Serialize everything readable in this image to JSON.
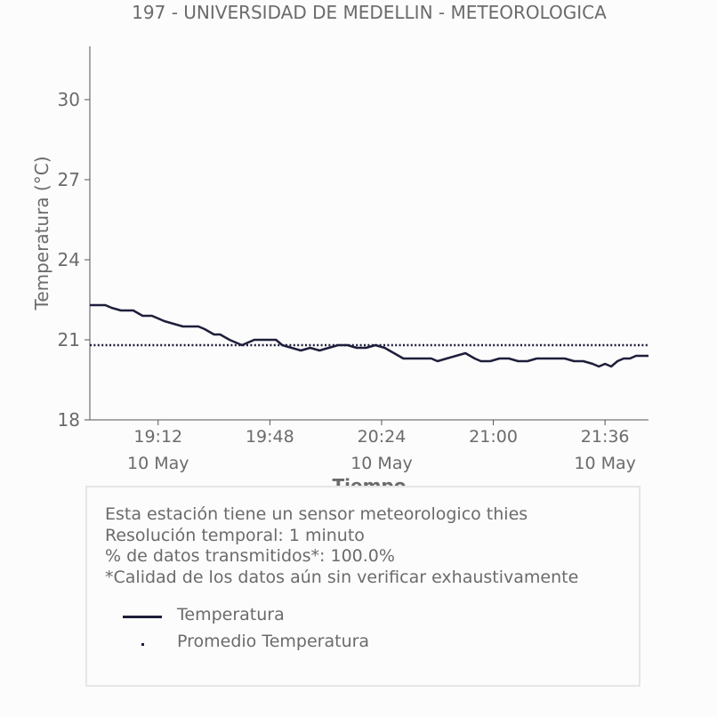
{
  "chart_data": {
    "type": "line",
    "title": "197 - UNIVERSIDAD DE MEDELLIN - METEOROLOGICA",
    "xlabel": "Tiempo",
    "ylabel": "Temperatura (°C)",
    "ylim": [
      18,
      32
    ],
    "yticks": [
      18,
      21,
      24,
      27,
      30
    ],
    "xlim": [
      "18:50",
      "21:50"
    ],
    "xticks": [
      {
        "t": "19:12",
        "time": "19:12",
        "date": "10 May"
      },
      {
        "t": "19:48",
        "time": "19:48",
        "date": ""
      },
      {
        "t": "20:24",
        "time": "20:24",
        "date": "10 May"
      },
      {
        "t": "21:00",
        "time": "21:00",
        "date": ""
      },
      {
        "t": "21:36",
        "time": "21:36",
        "date": "10 May"
      }
    ],
    "grid": false,
    "series": [
      {
        "name": "Temperatura",
        "color": "#1e1e3c",
        "style": "solid",
        "points": [
          [
            "18:50",
            22.3
          ],
          [
            "18:55",
            22.3
          ],
          [
            "18:57",
            22.2
          ],
          [
            "19:00",
            22.1
          ],
          [
            "19:04",
            22.1
          ],
          [
            "19:07",
            21.9
          ],
          [
            "19:10",
            21.9
          ],
          [
            "19:12",
            21.8
          ],
          [
            "19:14",
            21.7
          ],
          [
            "19:17",
            21.6
          ],
          [
            "19:20",
            21.5
          ],
          [
            "19:22",
            21.5
          ],
          [
            "19:25",
            21.5
          ],
          [
            "19:27",
            21.4
          ],
          [
            "19:30",
            21.2
          ],
          [
            "19:32",
            21.2
          ],
          [
            "19:35",
            21.0
          ],
          [
            "19:37",
            20.9
          ],
          [
            "19:39",
            20.8
          ],
          [
            "19:41",
            20.9
          ],
          [
            "19:43",
            21.0
          ],
          [
            "19:46",
            21.0
          ],
          [
            "19:50",
            21.0
          ],
          [
            "19:52",
            20.8
          ],
          [
            "19:55",
            20.7
          ],
          [
            "19:58",
            20.6
          ],
          [
            "20:01",
            20.7
          ],
          [
            "20:04",
            20.6
          ],
          [
            "20:07",
            20.7
          ],
          [
            "20:10",
            20.8
          ],
          [
            "20:13",
            20.8
          ],
          [
            "20:16",
            20.7
          ],
          [
            "20:19",
            20.7
          ],
          [
            "20:22",
            20.8
          ],
          [
            "20:25",
            20.7
          ],
          [
            "20:28",
            20.5
          ],
          [
            "20:31",
            20.3
          ],
          [
            "20:34",
            20.3
          ],
          [
            "20:37",
            20.3
          ],
          [
            "20:40",
            20.3
          ],
          [
            "20:42",
            20.2
          ],
          [
            "20:45",
            20.3
          ],
          [
            "20:48",
            20.4
          ],
          [
            "20:51",
            20.5
          ],
          [
            "20:54",
            20.3
          ],
          [
            "20:56",
            20.2
          ],
          [
            "20:59",
            20.2
          ],
          [
            "21:02",
            20.3
          ],
          [
            "21:05",
            20.3
          ],
          [
            "21:08",
            20.2
          ],
          [
            "21:11",
            20.2
          ],
          [
            "21:14",
            20.3
          ],
          [
            "21:17",
            20.3
          ],
          [
            "21:20",
            20.3
          ],
          [
            "21:23",
            20.3
          ],
          [
            "21:26",
            20.2
          ],
          [
            "21:29",
            20.2
          ],
          [
            "21:32",
            20.1
          ],
          [
            "21:34",
            20.0
          ],
          [
            "21:36",
            20.1
          ],
          [
            "21:38",
            20.0
          ],
          [
            "21:40",
            20.2
          ],
          [
            "21:42",
            20.3
          ],
          [
            "21:44",
            20.3
          ],
          [
            "21:46",
            20.4
          ],
          [
            "21:48",
            20.4
          ],
          [
            "21:50",
            20.4
          ]
        ]
      },
      {
        "name": "Promedio Temperatura",
        "color": "#1e1e3c",
        "style": "dotted",
        "value": 20.8
      }
    ]
  },
  "info": {
    "line1": "Esta estación tiene un sensor meteorologico thies",
    "line2": "Resolución temporal: 1 minuto",
    "line3": "% de datos transmitidos*: 100.0%",
    "line4": "*Calidad de los datos aún sin verificar exhaustivamente"
  },
  "legend": {
    "temp_label": "Temperatura",
    "avg_label": "Promedio Temperatura"
  },
  "colors": {
    "line": "#1e1e3c",
    "text": "#6b6b6b",
    "axis": "#555555"
  }
}
